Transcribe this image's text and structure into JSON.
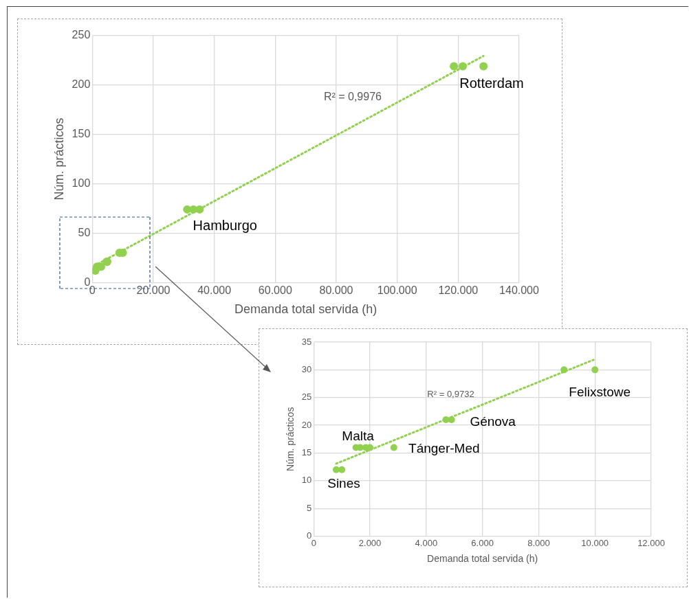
{
  "chart_data": [
    {
      "type": "scatter",
      "xlabel": "Demanda total servida (h)",
      "ylabel": "Núm. prácticos",
      "grid": true,
      "legend": false,
      "marker": "circle",
      "xlim": [
        0,
        140000
      ],
      "xticks": [
        0,
        {
          "value": 20000,
          "label": "20.000"
        },
        {
          "value": 40000,
          "label": "40.000"
        },
        {
          "value": 60000,
          "label": "60.000"
        },
        {
          "value": 80000,
          "label": "80.000"
        },
        {
          "value": 100000,
          "label": "100.000"
        },
        {
          "value": 120000,
          "label": "120.000"
        },
        {
          "value": 140000,
          "label": "140.000"
        }
      ],
      "ylim": [
        0,
        250
      ],
      "yticks": [
        0,
        50,
        100,
        150,
        200,
        250
      ],
      "series": [
        {
          "type": "scatter",
          "color": "#92d050",
          "x": [
            1000,
            1500,
            2850,
            4700,
            4900,
            8900,
            10000,
            31100,
            33150,
            35200,
            118600,
            121500,
            128300
          ],
          "values": [
            12,
            16,
            16,
            21,
            21,
            30,
            30,
            74,
            74,
            74,
            219,
            219,
            219
          ]
        },
        {
          "type": "line",
          "color": "#92d050",
          "line_style": "dotted",
          "marker": "none",
          "x": [
            700,
            128300
          ],
          "values": [
            17,
            229.5
          ]
        }
      ],
      "annotations": [
        "R² = 0,9976",
        {
          "text": "Rotterdam",
          "x": 121500,
          "y": 219
        },
        {
          "text": "Hamburgo",
          "x": 33150,
          "y": 74
        }
      ]
    },
    {
      "type": "scatter",
      "xlabel": "Demanda total servida (h)",
      "ylabel": "Núm. prácticos",
      "grid": true,
      "legend": false,
      "marker": "circle",
      "xlim": [
        0,
        12000
      ],
      "xticks": [
        0,
        {
          "value": 2000,
          "label": "2.000"
        },
        {
          "value": 4000,
          "label": "4.000"
        },
        {
          "value": 6000,
          "label": "6.000"
        },
        {
          "value": 8000,
          "label": "8.000"
        },
        {
          "value": 10000,
          "label": "10.000"
        },
        {
          "value": 12000,
          "label": "12.000"
        }
      ],
      "ylim": [
        0,
        35
      ],
      "yticks": [
        0,
        5,
        10,
        15,
        20,
        25,
        30,
        35
      ],
      "series": [
        {
          "type": "scatter",
          "color": "#92d050",
          "x": [
            800,
            1000,
            1500,
            1650,
            1850,
            2000,
            2850,
            4700,
            4900,
            8900,
            10000
          ],
          "values": [
            12,
            12,
            16,
            16,
            16,
            16,
            16,
            21,
            21,
            30,
            30
          ]
        },
        {
          "type": "line",
          "color": "#92d050",
          "line_style": "dotted",
          "marker": "none",
          "x": [
            800,
            9950
          ],
          "values": [
            13.1,
            31.8
          ]
        }
      ],
      "annotations": [
        "R² = 0,9732",
        {
          "text": "Malta",
          "x": 1500,
          "y": 16
        },
        {
          "text": "Tánger-Med",
          "x": 2850,
          "y": 16
        },
        {
          "text": "Sines",
          "x": 800,
          "y": 12
        },
        {
          "text": "Génova",
          "x": 4900,
          "y": 21
        },
        {
          "text": "Felixstowe",
          "x": 10000,
          "y": 30
        }
      ]
    }
  ]
}
